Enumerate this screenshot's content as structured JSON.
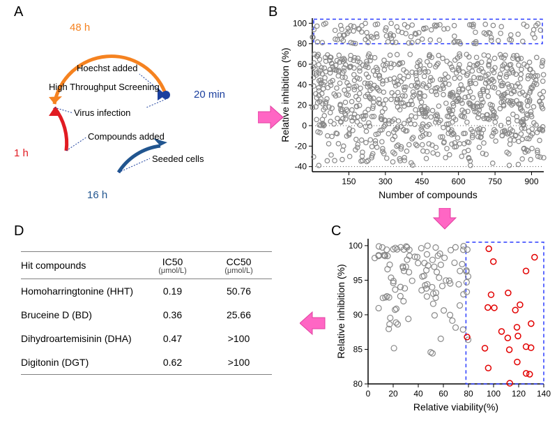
{
  "panelA": {
    "letter": "A",
    "arcs": {
      "orange": {
        "label": "48 h",
        "color": "#f58220",
        "text_color": "#f58220"
      },
      "red": {
        "label": "1 h",
        "color": "#e11b22",
        "text_color": "#e11b22"
      },
      "blue": {
        "label": "16 h",
        "color": "#21558f",
        "text_color": "#21558f"
      }
    },
    "labels": {
      "hoechst": {
        "text": "Hoechst added",
        "color": "#000000"
      },
      "hts": {
        "text": "High Throughput Screening",
        "color": "#000000"
      },
      "min20": {
        "text": "20 min",
        "color": "#1b3f9e"
      },
      "virus": {
        "text": "Virus infection",
        "color": "#000000"
      },
      "compounds": {
        "text": "Compounds added",
        "color": "#000000"
      },
      "seeded": {
        "text": "Seeded cells",
        "color": "#000000"
      }
    },
    "font": {
      "label_fontsize": 13,
      "time_fontsize": 15
    }
  },
  "panelB": {
    "letter": "B",
    "type": "scatter",
    "xlabel": "Number of compounds",
    "ylabel": "Relative inhibition (%)",
    "xlim": [
      0,
      950
    ],
    "xticks": [
      150,
      300,
      450,
      600,
      750,
      900
    ],
    "ylim": [
      -45,
      105
    ],
    "yticks": [
      -40,
      -20,
      0,
      20,
      40,
      60,
      80,
      100
    ],
    "threshold_y": 80,
    "box_low_y": -40,
    "marker": {
      "color": "#888888",
      "fill": "none",
      "radius": 3.2,
      "stroke_width": 1.2
    },
    "box_color": "#2a3bff",
    "axis_color": "#000000",
    "grid_color": "#888888",
    "n_points": 980,
    "label_fontsize": 14,
    "tick_fontsize": 12
  },
  "panelC": {
    "letter": "C",
    "type": "scatter",
    "xlabel": "Relative viability(%)",
    "ylabel": "Relative inhibition (%)",
    "xlim": [
      0,
      140
    ],
    "xticks": [
      0,
      20,
      40,
      60,
      80,
      100,
      120,
      140
    ],
    "ylim": [
      80,
      101
    ],
    "yticks": [
      80,
      85,
      90,
      95,
      100
    ],
    "viability_threshold": 78,
    "box_color": "#2a3bff",
    "marker_gray": {
      "color": "#888888",
      "fill": "none",
      "radius": 4,
      "stroke_width": 1.2
    },
    "marker_red": {
      "color": "#e20000",
      "fill": "none",
      "radius": 4,
      "stroke_width": 1.5
    },
    "n_gray": 110,
    "n_red": 25,
    "axis_color": "#000000",
    "label_fontsize": 14,
    "tick_fontsize": 12
  },
  "panelD": {
    "letter": "D",
    "type": "table",
    "columns": [
      "Hit compounds",
      "IC50",
      "CC50"
    ],
    "units": [
      "",
      "(μmol/L)",
      "(μmol/L)"
    ],
    "rows": [
      [
        "Homoharringtonine (HHT)",
        "0.19",
        "50.76"
      ],
      [
        "Bruceine D (BD)",
        "0.36",
        "25.66"
      ],
      [
        "Dihydroartemisinin (DHA)",
        "0.47",
        ">100"
      ],
      [
        "Digitonin (DGT)",
        "0.62",
        ">100"
      ]
    ],
    "border_color": "#808080",
    "text_color": "#000000",
    "header_fontsize": 14,
    "body_fontsize": 14
  },
  "arrows": {
    "color_fill": "#ff66c4",
    "color_stroke": "#e040a0"
  }
}
